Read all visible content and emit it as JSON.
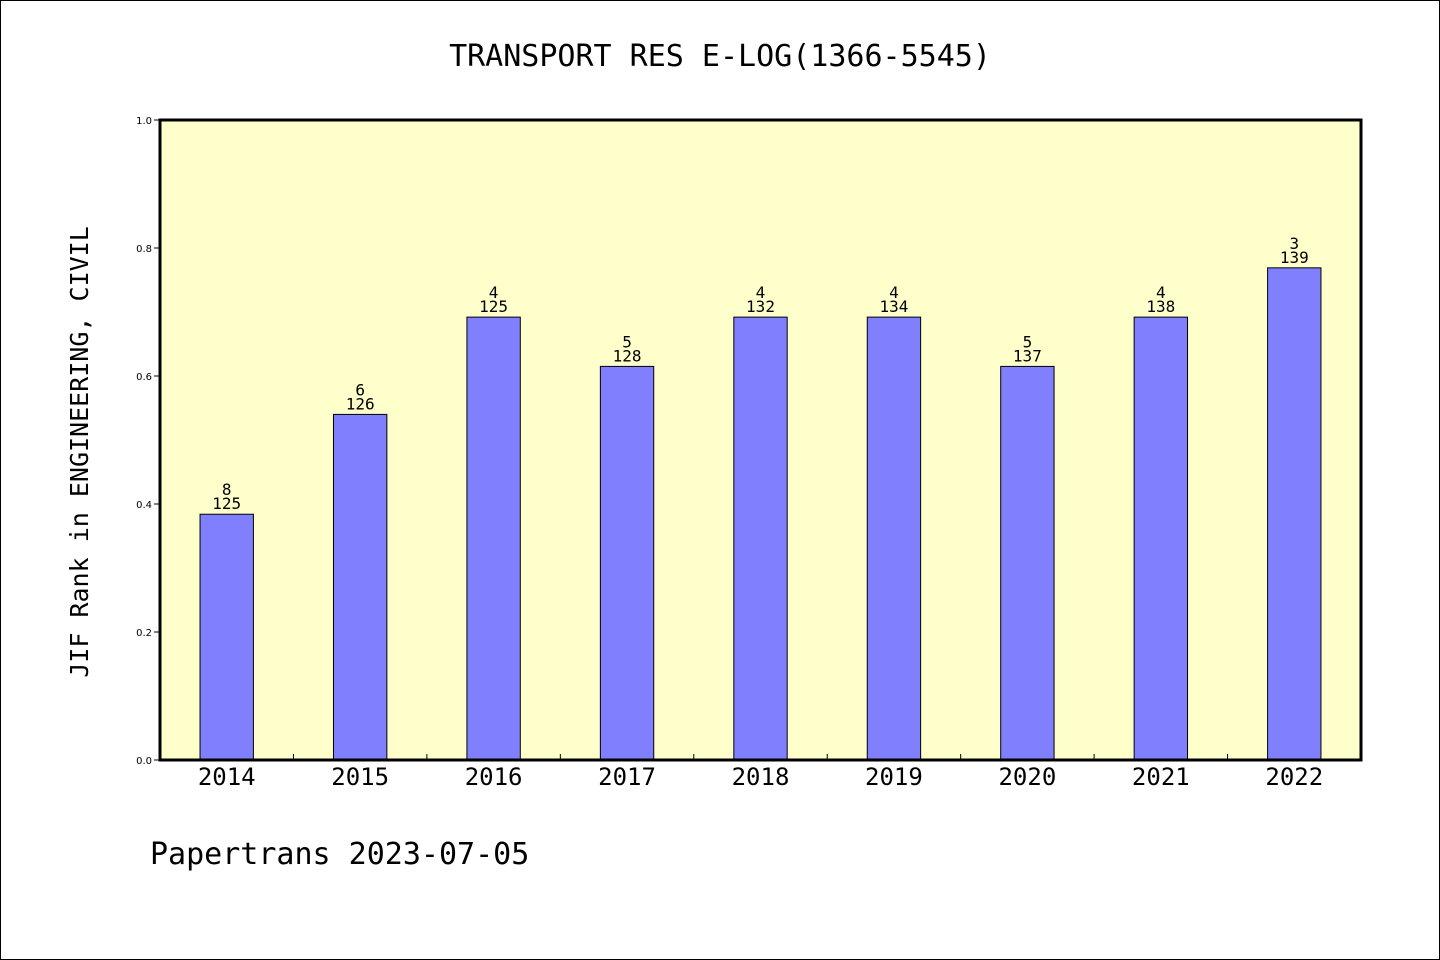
{
  "colors": {
    "plot_background": "#ffffcc",
    "bar_fill": "#8080ff",
    "bar_stroke": "#000000",
    "axis": "#000000"
  },
  "chart_data": {
    "type": "bar",
    "title": "TRANSPORT RES E-LOG(1366-5545)",
    "xlabel": "",
    "ylabel": "JIF Rank in ENGINEERING, CIVIL",
    "ylim": [
      0.0,
      1.0
    ],
    "yticks": [
      "0.0",
      "0.2",
      "0.4",
      "0.6",
      "0.8",
      "1.0"
    ],
    "grid": false,
    "categories": [
      "2014",
      "2015",
      "2016",
      "2017",
      "2018",
      "2019",
      "2020",
      "2021",
      "2022"
    ],
    "values": [
      0.384,
      0.54,
      0.692,
      0.615,
      0.692,
      0.692,
      0.615,
      0.692,
      0.769
    ],
    "data_labels": [
      {
        "rank": "8",
        "total": "125"
      },
      {
        "rank": "6",
        "total": "126"
      },
      {
        "rank": "4",
        "total": "125"
      },
      {
        "rank": "5",
        "total": "128"
      },
      {
        "rank": "4",
        "total": "132"
      },
      {
        "rank": "4",
        "total": "134"
      },
      {
        "rank": "5",
        "total": "137"
      },
      {
        "rank": "4",
        "total": "138"
      },
      {
        "rank": "3",
        "total": "139"
      }
    ]
  },
  "footer": "Papertrans 2023-07-05"
}
